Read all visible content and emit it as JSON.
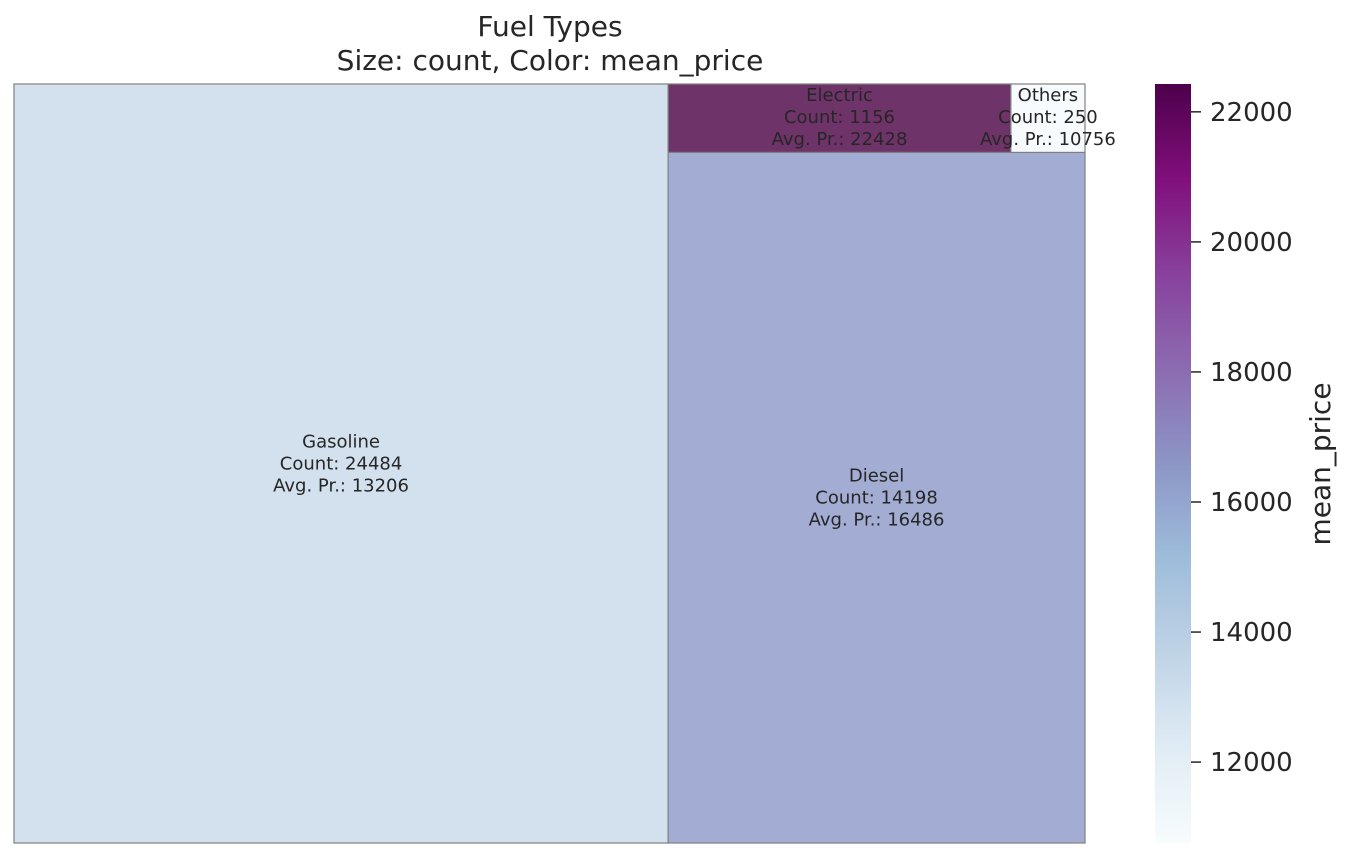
{
  "chart_data": {
    "type": "treemap",
    "title": "Fuel Types",
    "subtitle": "Size: count, Color: mean_price",
    "label_templates": {
      "count": "Count: ",
      "price": "Avg. Pr.: "
    },
    "tiles": [
      {
        "name": "Gasoline",
        "count": 24484,
        "mean_price": 13206,
        "color": "#d3e1ef"
      },
      {
        "name": "Diesel",
        "count": 14198,
        "mean_price": 16486,
        "color": "#a3add4"
      },
      {
        "name": "Electric",
        "count": 1156,
        "mean_price": 22428,
        "color": "#6e3368"
      },
      {
        "name": "Others",
        "count": 250,
        "mean_price": 10756,
        "color": "#f7fbfd"
      }
    ],
    "colorbar": {
      "label": "mean_price",
      "range": [
        10756,
        22428
      ],
      "ticks": [
        12000,
        14000,
        16000,
        18000,
        20000,
        22000
      ],
      "colormap": "BuPu",
      "stops": [
        "#f7fcfd",
        "#e0ecf4",
        "#bfd3e6",
        "#9ebcda",
        "#8c96c6",
        "#8c6bb1",
        "#88419d",
        "#810f7c",
        "#4d004b"
      ]
    }
  }
}
